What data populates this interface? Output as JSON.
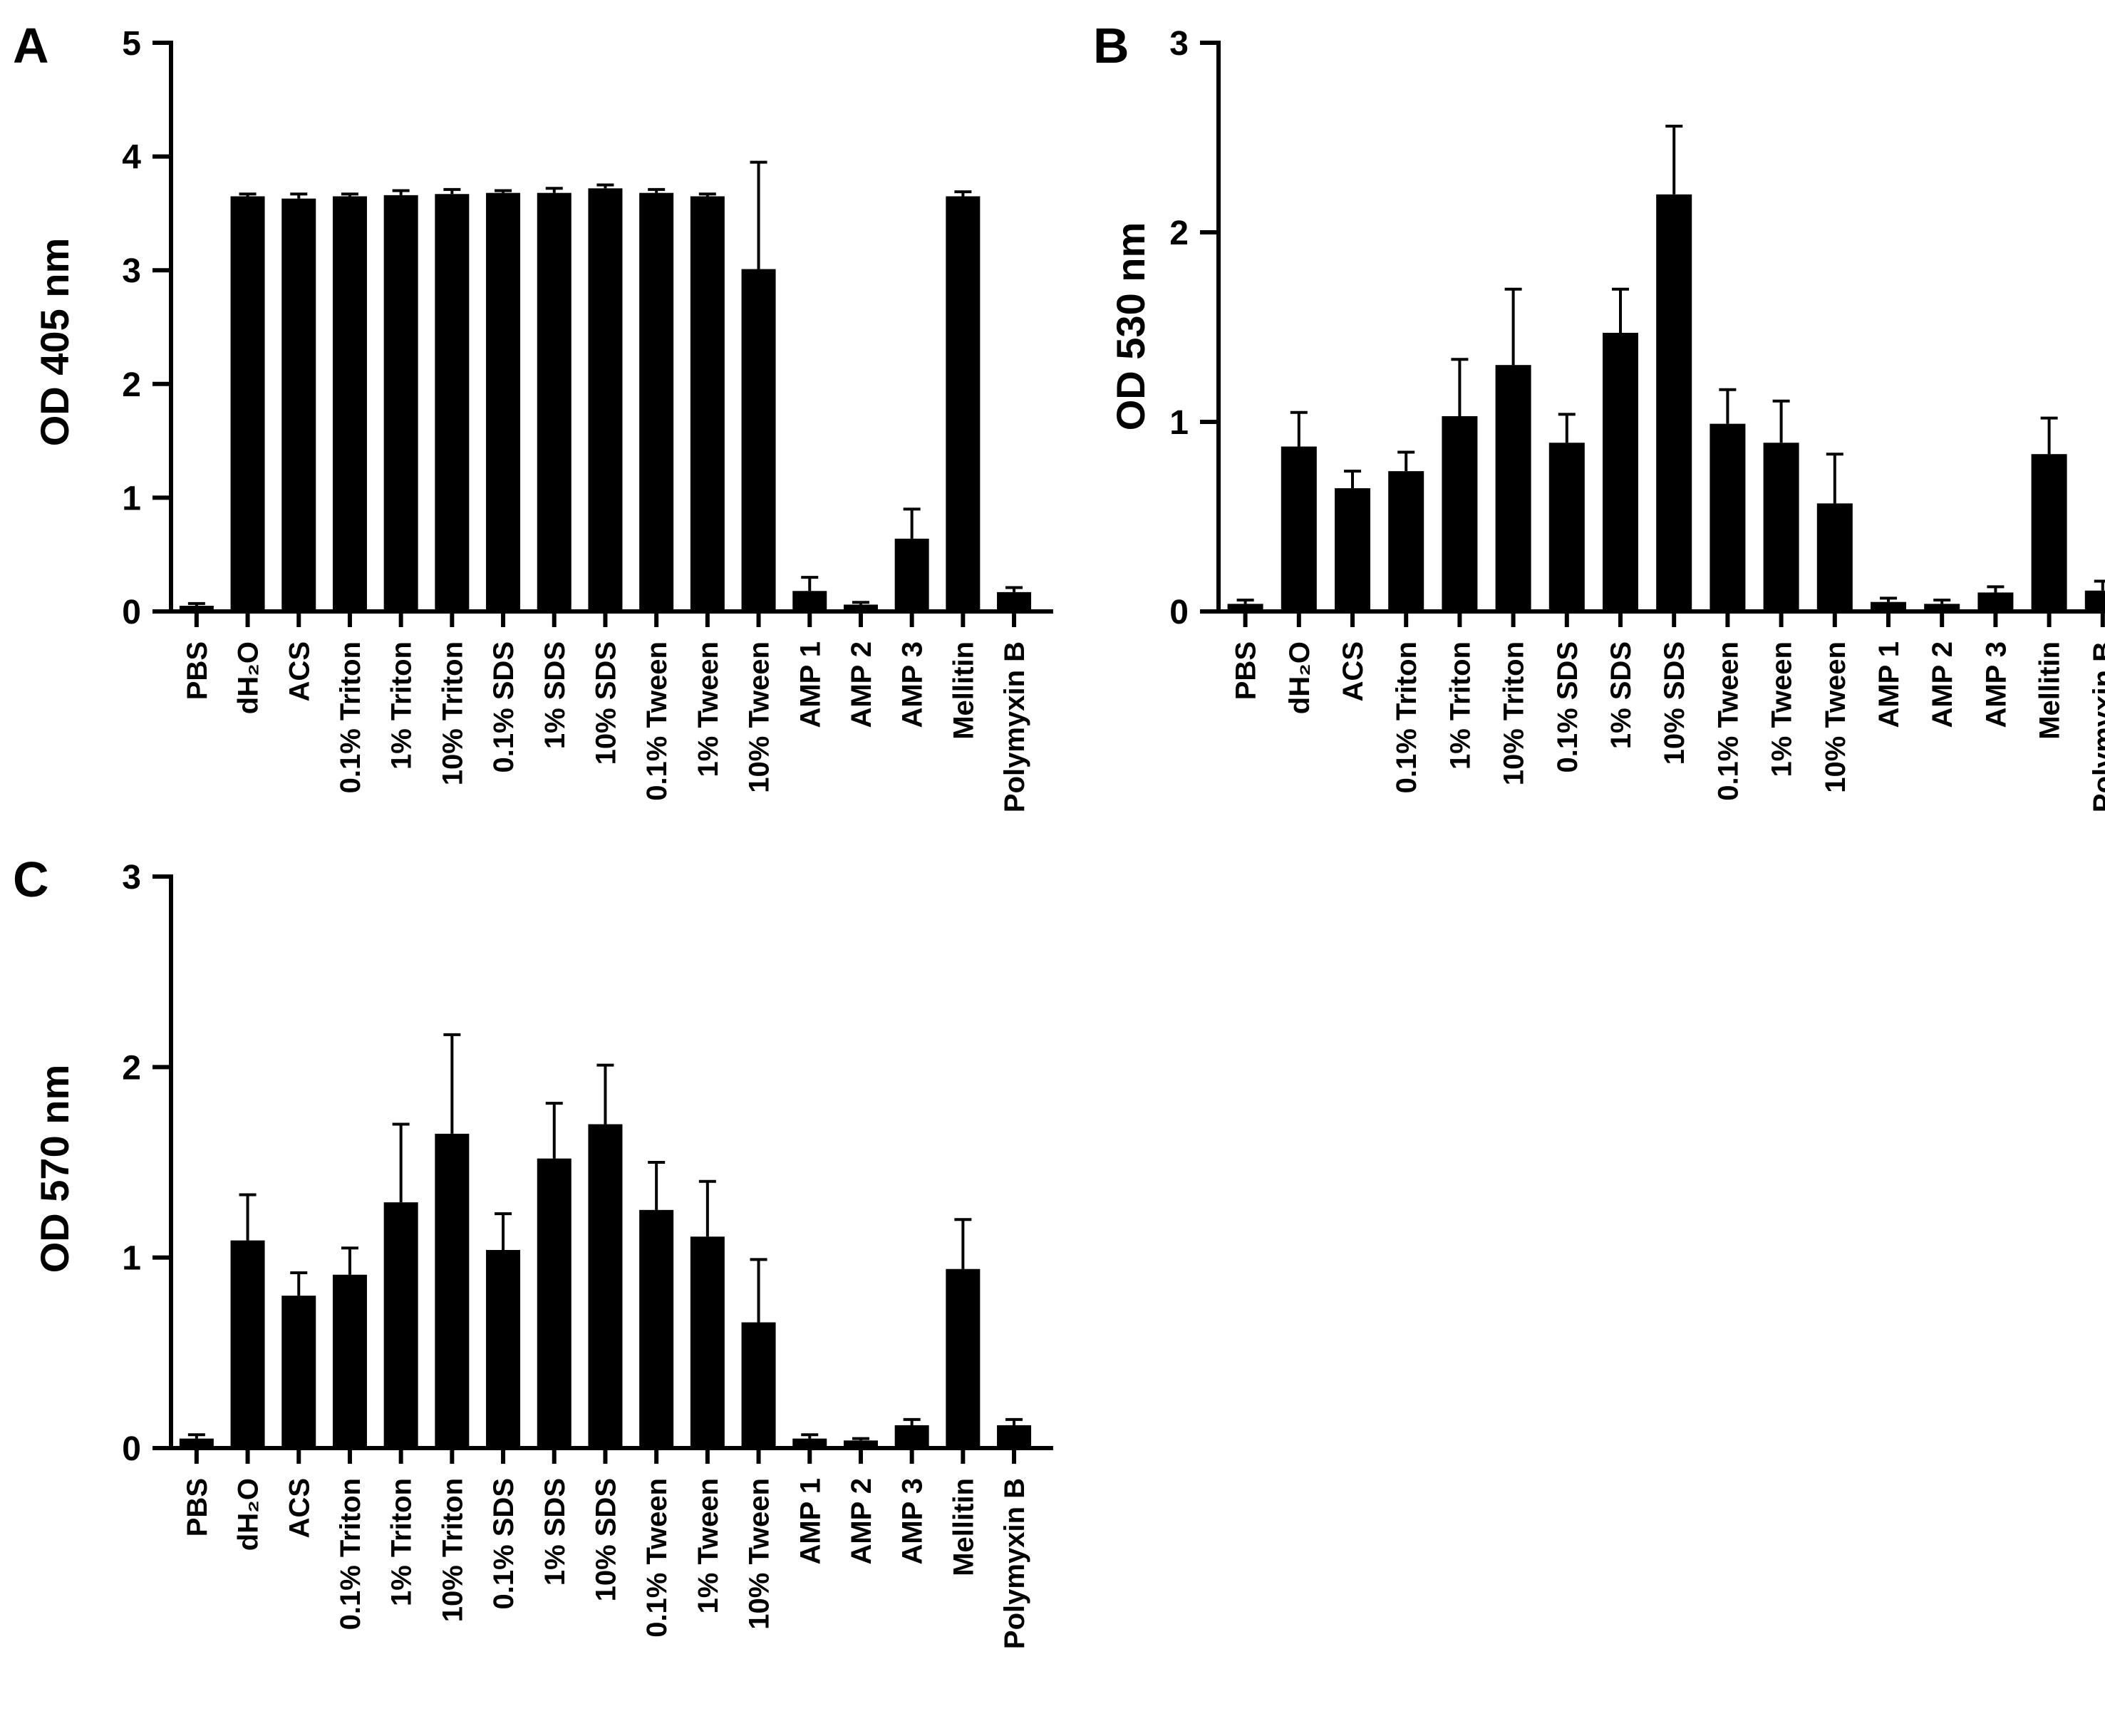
{
  "figure_title": "",
  "chart_data": [
    {
      "panel": "A",
      "type": "bar",
      "ylabel": "OD 405 nm",
      "ylim": [
        0,
        5
      ],
      "yticks": [
        "0",
        "1",
        "2",
        "3",
        "4",
        "5"
      ],
      "categories": [
        "PBS",
        "dH₂O",
        "ACS",
        "0.1% Triton",
        "1% Triton",
        "10% Triton",
        "0.1% SDS",
        "1% SDS",
        "10% SDS",
        "0.1% Tween",
        "1% Tween",
        "10% Tween",
        "AMP 1",
        "AMP 2",
        "AMP 3",
        "Mellitin",
        "Polymyxin B"
      ],
      "values": [
        0.05,
        3.65,
        3.63,
        3.65,
        3.66,
        3.67,
        3.68,
        3.68,
        3.72,
        3.68,
        3.65,
        3.01,
        0.18,
        0.06,
        0.64,
        3.65,
        0.17
      ],
      "errors": [
        0.02,
        0.02,
        0.04,
        0.02,
        0.04,
        0.04,
        0.02,
        0.04,
        0.03,
        0.03,
        0.02,
        0.94,
        0.12,
        0.02,
        0.26,
        0.04,
        0.04
      ]
    },
    {
      "panel": "B",
      "type": "bar",
      "ylabel": "OD 530 nm",
      "ylim": [
        0,
        3
      ],
      "yticks": [
        "0",
        "1",
        "2",
        "3"
      ],
      "categories": [
        "PBS",
        "dH₂O",
        "ACS",
        "0.1% Triton",
        "1% Triton",
        "10% Triton",
        "0.1% SDS",
        "1% SDS",
        "10% SDS",
        "0.1% Tween",
        "1% Tween",
        "10% Tween",
        "AMP 1",
        "AMP 2",
        "AMP 3",
        "Mellitin",
        "Polymyxin B"
      ],
      "values": [
        0.04,
        0.87,
        0.65,
        0.74,
        1.03,
        1.3,
        0.89,
        1.47,
        2.2,
        0.99,
        0.89,
        0.57,
        0.05,
        0.04,
        0.1,
        0.83,
        0.11
      ],
      "errors": [
        0.02,
        0.18,
        0.09,
        0.1,
        0.3,
        0.4,
        0.15,
        0.23,
        0.36,
        0.18,
        0.22,
        0.26,
        0.02,
        0.02,
        0.03,
        0.19,
        0.05
      ]
    },
    {
      "panel": "C",
      "type": "bar",
      "ylabel": "OD 570 nm",
      "ylim": [
        0,
        3
      ],
      "yticks": [
        "0",
        "1",
        "2",
        "3"
      ],
      "categories": [
        "PBS",
        "dH₂O",
        "ACS",
        "0.1% Triton",
        "1% Triton",
        "10% Triton",
        "0.1% SDS",
        "1% SDS",
        "10% SDS",
        "0.1% Tween",
        "1% Tween",
        "10% Tween",
        "AMP 1",
        "AMP 2",
        "AMP 3",
        "Mellitin",
        "Polymyxin B"
      ],
      "values": [
        0.05,
        1.09,
        0.8,
        0.91,
        1.29,
        1.65,
        1.04,
        1.52,
        1.7,
        1.25,
        1.11,
        0.66,
        0.05,
        0.04,
        0.12,
        0.94,
        0.12
      ],
      "errors": [
        0.02,
        0.24,
        0.12,
        0.14,
        0.41,
        0.52,
        0.19,
        0.29,
        0.31,
        0.25,
        0.29,
        0.33,
        0.02,
        0.01,
        0.03,
        0.26,
        0.03
      ]
    }
  ]
}
